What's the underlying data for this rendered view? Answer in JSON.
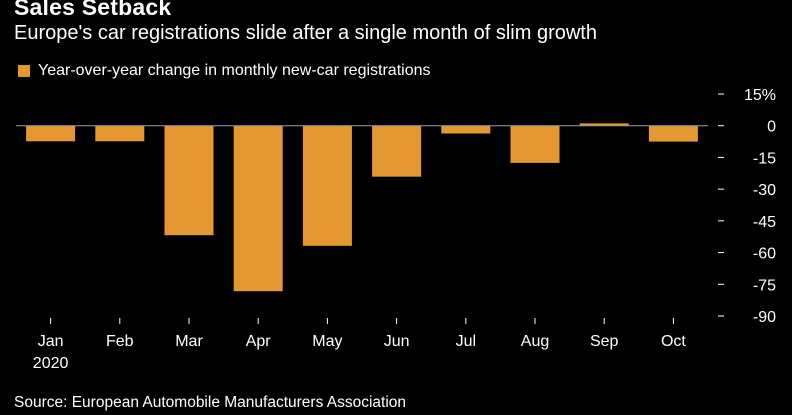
{
  "title": "Sales Setback",
  "subtitle": "Europe's car registrations slide after a single month of slim growth",
  "source": "Source: European Automobile Manufacturers Association",
  "colors": {
    "bar": "#e59732",
    "background": "#000000",
    "text": "#ffffff",
    "zero_line": "#9aa0a6"
  },
  "chart_data": {
    "type": "bar",
    "title": "Sales Setback",
    "subtitle": "Europe's car registrations slide after a single month of slim growth",
    "legend": [
      "Year-over-year change in monthly new-car registrations"
    ],
    "legend_position": "top-left",
    "categories": [
      "Jan",
      "Feb",
      "Mar",
      "Apr",
      "May",
      "Jun",
      "Jul",
      "Aug",
      "Sep",
      "Oct"
    ],
    "category_sublabels": [
      "2020",
      "",
      "",
      "",
      "",
      "",
      "",
      "",
      "",
      ""
    ],
    "series": [
      {
        "name": "Year-over-year change in monthly new-car registrations",
        "values": [
          -7.4,
          -7.4,
          -51.8,
          -78.3,
          -56.8,
          -24.1,
          -3.7,
          -17.6,
          1.1,
          -7.5
        ]
      }
    ],
    "yticks": [
      15,
      0,
      -15,
      -30,
      -45,
      -60,
      -75,
      -90
    ],
    "ytick_labels": [
      "15%",
      "0",
      "-15",
      "-30",
      "-45",
      "-60",
      "-75",
      "-90"
    ],
    "ylim": [
      -90,
      15
    ],
    "y_axis_side": "right",
    "xlabel": "",
    "ylabel": "",
    "grid": false
  }
}
